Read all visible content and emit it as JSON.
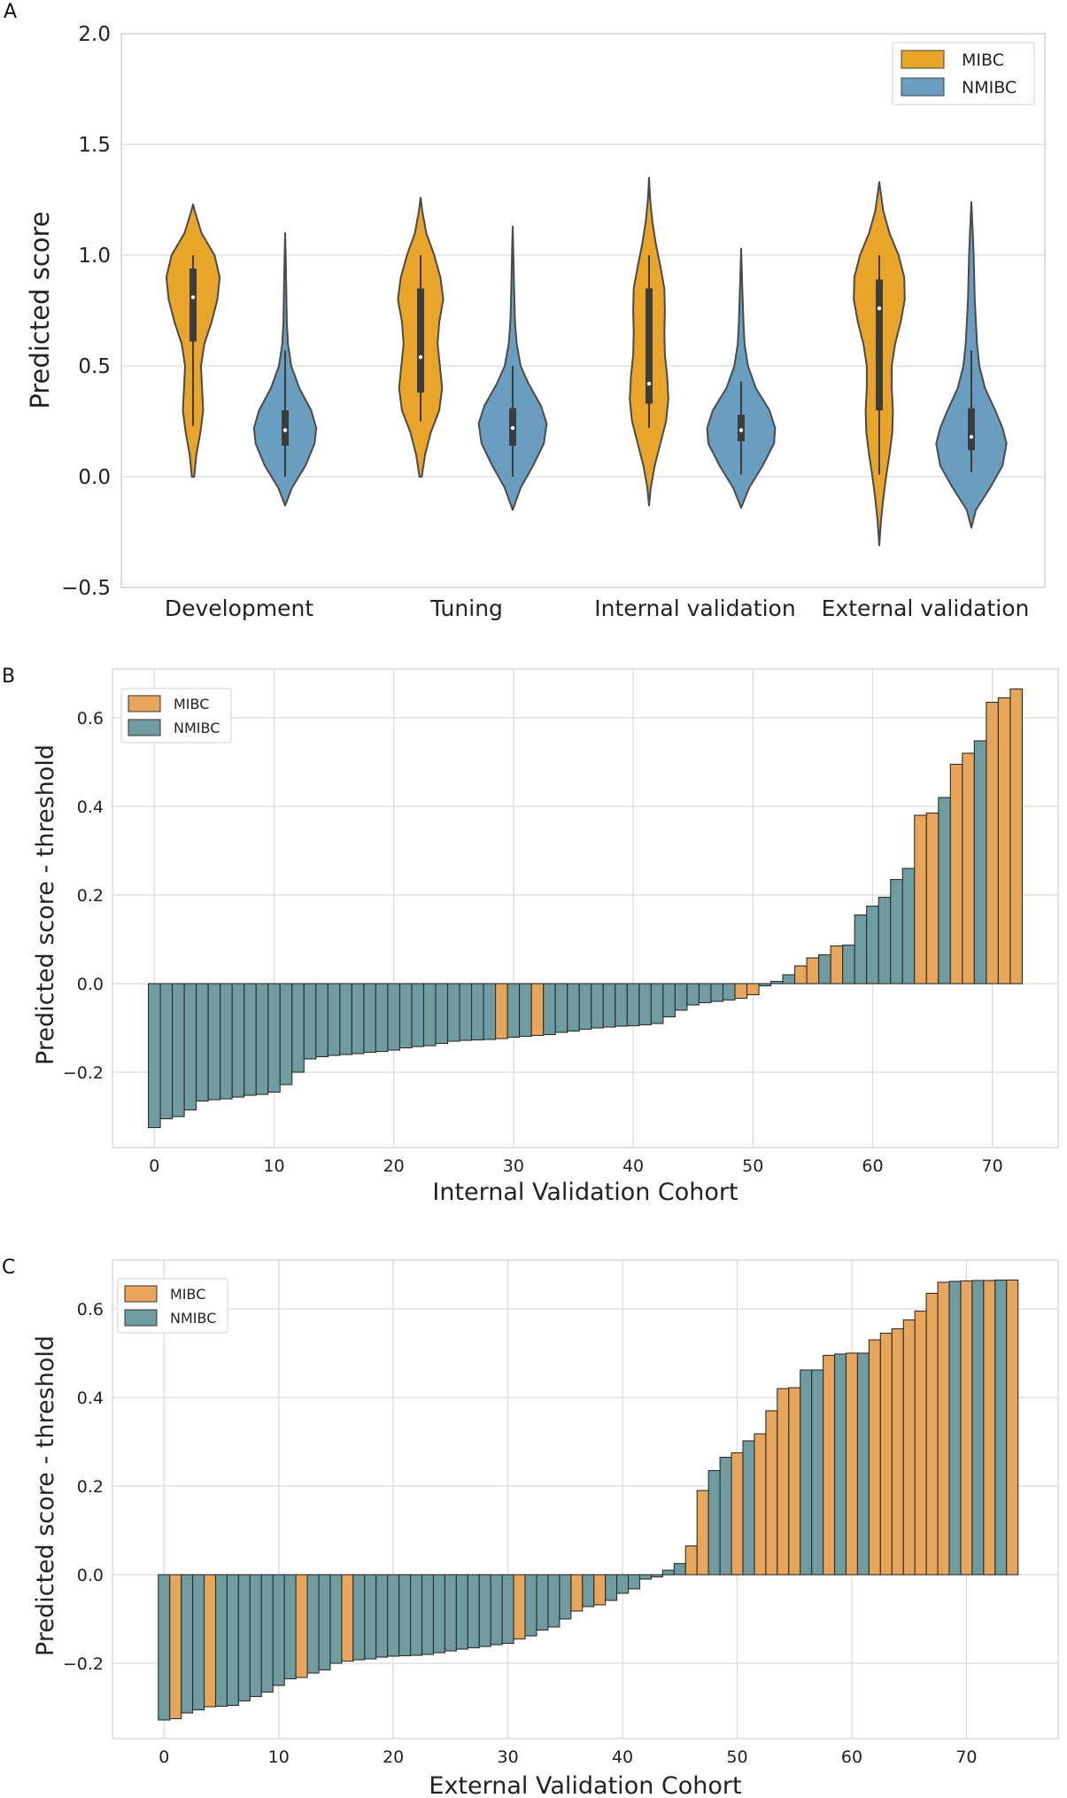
{
  "colors": {
    "mibc": "#E8A52A",
    "nmibc": "#6A9EC1",
    "mibc_bar": "#E7A65C",
    "nmibc_bar": "#6E9CA0",
    "grid": "#D9D9D9"
  },
  "chart_data": [
    {
      "panel": "A",
      "type": "violin",
      "title": "",
      "xlabel": "",
      "ylabel": "Predicted score",
      "ylim": [
        -0.5,
        2.0
      ],
      "yticks": [
        -0.5,
        0.0,
        0.5,
        1.0,
        1.5,
        2.0
      ],
      "ytick_labels": [
        "−0.5",
        "0.0",
        "0.5",
        "1.0",
        "1.5",
        "2.0"
      ],
      "categories": [
        "Development",
        "Tuning",
        "Internal validation",
        "External validation"
      ],
      "legend": [
        "MIBC",
        "NMIBC"
      ],
      "legend_position": "top-right",
      "series": [
        {
          "name": "MIBC",
          "groups": [
            {
              "min": 0.0,
              "max": 1.23,
              "q1": 0.61,
              "median": 0.81,
              "q3": 0.94,
              "whisker_low": 0.23,
              "whisker_high": 1.0,
              "density": [
                [
                  0.0,
                  0.02
                ],
                [
                  0.1,
                  0.06
                ],
                [
                  0.2,
                  0.13
                ],
                [
                  0.3,
                  0.18
                ],
                [
                  0.4,
                  0.16
                ],
                [
                  0.5,
                  0.14
                ],
                [
                  0.6,
                  0.2
                ],
                [
                  0.7,
                  0.33
                ],
                [
                  0.8,
                  0.43
                ],
                [
                  0.9,
                  0.47
                ],
                [
                  1.0,
                  0.38
                ],
                [
                  1.1,
                  0.15
                ],
                [
                  1.2,
                  0.03
                ],
                [
                  1.23,
                  0.0
                ]
              ]
            },
            {
              "min": 0.0,
              "max": 1.26,
              "q1": 0.38,
              "median": 0.54,
              "q3": 0.85,
              "whisker_low": 0.25,
              "whisker_high": 1.0,
              "density": [
                [
                  0.0,
                  0.02
                ],
                [
                  0.1,
                  0.08
                ],
                [
                  0.2,
                  0.18
                ],
                [
                  0.3,
                  0.33
                ],
                [
                  0.4,
                  0.38
                ],
                [
                  0.5,
                  0.34
                ],
                [
                  0.6,
                  0.3
                ],
                [
                  0.7,
                  0.33
                ],
                [
                  0.8,
                  0.4
                ],
                [
                  0.9,
                  0.35
                ],
                [
                  1.0,
                  0.24
                ],
                [
                  1.1,
                  0.1
                ],
                [
                  1.2,
                  0.03
                ],
                [
                  1.26,
                  0.0
                ]
              ]
            },
            {
              "min": -0.13,
              "max": 1.35,
              "q1": 0.33,
              "median": 0.42,
              "q3": 0.85,
              "whisker_low": 0.22,
              "whisker_high": 1.0,
              "density": [
                [
                  -0.13,
                  0.0
                ],
                [
                  -0.05,
                  0.03
                ],
                [
                  0.05,
                  0.1
                ],
                [
                  0.15,
                  0.2
                ],
                [
                  0.25,
                  0.3
                ],
                [
                  0.35,
                  0.34
                ],
                [
                  0.45,
                  0.32
                ],
                [
                  0.55,
                  0.28
                ],
                [
                  0.65,
                  0.27
                ],
                [
                  0.75,
                  0.28
                ],
                [
                  0.85,
                  0.27
                ],
                [
                  0.95,
                  0.2
                ],
                [
                  1.05,
                  0.12
                ],
                [
                  1.15,
                  0.06
                ],
                [
                  1.25,
                  0.02
                ],
                [
                  1.35,
                  0.0
                ]
              ]
            },
            {
              "min": -0.31,
              "max": 1.33,
              "q1": 0.3,
              "median": 0.76,
              "q3": 0.89,
              "whisker_low": 0.01,
              "whisker_high": 1.0,
              "density": [
                [
                  -0.31,
                  0.0
                ],
                [
                  -0.2,
                  0.03
                ],
                [
                  -0.1,
                  0.07
                ],
                [
                  0.0,
                  0.12
                ],
                [
                  0.1,
                  0.18
                ],
                [
                  0.2,
                  0.23
                ],
                [
                  0.3,
                  0.24
                ],
                [
                  0.4,
                  0.22
                ],
                [
                  0.5,
                  0.22
                ],
                [
                  0.6,
                  0.28
                ],
                [
                  0.7,
                  0.38
                ],
                [
                  0.8,
                  0.45
                ],
                [
                  0.9,
                  0.44
                ],
                [
                  1.0,
                  0.34
                ],
                [
                  1.1,
                  0.18
                ],
                [
                  1.2,
                  0.07
                ],
                [
                  1.33,
                  0.0
                ]
              ]
            }
          ]
        },
        {
          "name": "NMIBC",
          "groups": [
            {
              "min": -0.13,
              "max": 1.1,
              "q1": 0.14,
              "median": 0.21,
              "q3": 0.3,
              "whisker_low": 0.0,
              "whisker_high": 0.57,
              "density": [
                [
                  -0.13,
                  0.0
                ],
                [
                  -0.05,
                  0.12
                ],
                [
                  0.05,
                  0.36
                ],
                [
                  0.15,
                  0.52
                ],
                [
                  0.22,
                  0.55
                ],
                [
                  0.3,
                  0.46
                ],
                [
                  0.4,
                  0.25
                ],
                [
                  0.5,
                  0.11
                ],
                [
                  0.6,
                  0.05
                ],
                [
                  0.7,
                  0.03
                ],
                [
                  0.85,
                  0.02
                ],
                [
                  1.0,
                  0.01
                ],
                [
                  1.1,
                  0.0
                ]
              ]
            },
            {
              "min": -0.15,
              "max": 1.13,
              "q1": 0.14,
              "median": 0.22,
              "q3": 0.31,
              "whisker_low": 0.0,
              "whisker_high": 0.5,
              "density": [
                [
                  -0.15,
                  0.0
                ],
                [
                  -0.05,
                  0.14
                ],
                [
                  0.05,
                  0.36
                ],
                [
                  0.15,
                  0.55
                ],
                [
                  0.24,
                  0.6
                ],
                [
                  0.32,
                  0.5
                ],
                [
                  0.42,
                  0.28
                ],
                [
                  0.5,
                  0.14
                ],
                [
                  0.6,
                  0.07
                ],
                [
                  0.7,
                  0.04
                ],
                [
                  0.85,
                  0.025
                ],
                [
                  1.0,
                  0.012
                ],
                [
                  1.13,
                  0.0
                ]
              ]
            },
            {
              "min": -0.14,
              "max": 1.03,
              "q1": 0.16,
              "median": 0.21,
              "q3": 0.28,
              "whisker_low": 0.01,
              "whisker_high": 0.43,
              "density": [
                [
                  -0.14,
                  0.0
                ],
                [
                  -0.05,
                  0.14
                ],
                [
                  0.05,
                  0.38
                ],
                [
                  0.15,
                  0.58
                ],
                [
                  0.22,
                  0.6
                ],
                [
                  0.3,
                  0.5
                ],
                [
                  0.4,
                  0.26
                ],
                [
                  0.5,
                  0.12
                ],
                [
                  0.6,
                  0.06
                ],
                [
                  0.7,
                  0.04
                ],
                [
                  0.85,
                  0.02
                ],
                [
                  1.03,
                  0.0
                ]
              ]
            },
            {
              "min": -0.23,
              "max": 1.24,
              "q1": 0.12,
              "median": 0.18,
              "q3": 0.31,
              "whisker_low": 0.02,
              "whisker_high": 0.57,
              "density": [
                [
                  -0.23,
                  0.0
                ],
                [
                  -0.15,
                  0.08
                ],
                [
                  -0.05,
                  0.33
                ],
                [
                  0.05,
                  0.55
                ],
                [
                  0.15,
                  0.62
                ],
                [
                  0.22,
                  0.55
                ],
                [
                  0.3,
                  0.42
                ],
                [
                  0.4,
                  0.24
                ],
                [
                  0.5,
                  0.14
                ],
                [
                  0.6,
                  0.1
                ],
                [
                  0.7,
                  0.08
                ],
                [
                  0.8,
                  0.06
                ],
                [
                  0.9,
                  0.05
                ],
                [
                  1.0,
                  0.04
                ],
                [
                  1.1,
                  0.025
                ],
                [
                  1.24,
                  0.0
                ]
              ]
            }
          ]
        }
      ]
    },
    {
      "panel": "B",
      "type": "bar",
      "title": "",
      "xlabel": "Internal Validation Cohort",
      "ylabel": "Predicted score - threshold",
      "xlim": [
        -3.5,
        75.5
      ],
      "ylim": [
        -0.37,
        0.71
      ],
      "xticks": [
        0,
        10,
        20,
        30,
        40,
        50,
        60,
        70
      ],
      "yticks": [
        -0.2,
        0.0,
        0.2,
        0.4,
        0.6
      ],
      "ytick_labels": [
        "−0.2",
        "0.0",
        "0.2",
        "0.4",
        "0.6"
      ],
      "legend": [
        "MIBC",
        "NMIBC"
      ],
      "legend_position": "top-left",
      "values": [
        -0.325,
        -0.305,
        -0.3,
        -0.285,
        -0.265,
        -0.262,
        -0.26,
        -0.256,
        -0.252,
        -0.25,
        -0.245,
        -0.228,
        -0.2,
        -0.17,
        -0.165,
        -0.162,
        -0.16,
        -0.158,
        -0.155,
        -0.153,
        -0.15,
        -0.145,
        -0.142,
        -0.14,
        -0.135,
        -0.13,
        -0.128,
        -0.127,
        -0.126,
        -0.124,
        -0.121,
        -0.119,
        -0.117,
        -0.115,
        -0.11,
        -0.107,
        -0.103,
        -0.1,
        -0.098,
        -0.096,
        -0.095,
        -0.093,
        -0.09,
        -0.075,
        -0.06,
        -0.048,
        -0.043,
        -0.04,
        -0.037,
        -0.033,
        -0.025,
        -0.005,
        0.005,
        0.02,
        0.04,
        0.058,
        0.065,
        0.085,
        0.087,
        0.155,
        0.175,
        0.195,
        0.235,
        0.26,
        0.38,
        0.385,
        0.42,
        0.495,
        0.52,
        0.548,
        0.635,
        0.645,
        0.665
      ],
      "classes": [
        "N",
        "N",
        "N",
        "N",
        "N",
        "N",
        "N",
        "N",
        "N",
        "N",
        "N",
        "N",
        "N",
        "N",
        "N",
        "N",
        "N",
        "N",
        "N",
        "N",
        "N",
        "N",
        "N",
        "N",
        "N",
        "N",
        "N",
        "N",
        "N",
        "M",
        "N",
        "N",
        "M",
        "N",
        "N",
        "N",
        "N",
        "N",
        "N",
        "N",
        "N",
        "N",
        "N",
        "N",
        "N",
        "N",
        "N",
        "N",
        "N",
        "M",
        "M",
        "N",
        "N",
        "N",
        "M",
        "M",
        "N",
        "M",
        "N",
        "N",
        "N",
        "N",
        "N",
        "N",
        "M",
        "M",
        "N",
        "M",
        "M",
        "N",
        "M",
        "M",
        "M"
      ]
    },
    {
      "panel": "C",
      "type": "bar",
      "title": "",
      "xlabel": "External Validation Cohort",
      "ylabel": "Predicted score - threshold",
      "xlim": [
        -4.5,
        78.0
      ],
      "ylim": [
        -0.37,
        0.71
      ],
      "xticks": [
        0,
        10,
        20,
        30,
        40,
        50,
        60,
        70
      ],
      "yticks": [
        -0.2,
        0.0,
        0.2,
        0.4,
        0.6
      ],
      "ytick_labels": [
        "−0.2",
        "0.0",
        "0.2",
        "0.4",
        "0.6"
      ],
      "legend": [
        "MIBC",
        "NMIBC"
      ],
      "legend_position": "top-left",
      "values": [
        -0.328,
        -0.325,
        -0.312,
        -0.305,
        -0.298,
        -0.297,
        -0.295,
        -0.285,
        -0.275,
        -0.265,
        -0.25,
        -0.235,
        -0.232,
        -0.222,
        -0.215,
        -0.2,
        -0.195,
        -0.192,
        -0.19,
        -0.186,
        -0.184,
        -0.183,
        -0.182,
        -0.18,
        -0.176,
        -0.172,
        -0.168,
        -0.165,
        -0.162,
        -0.158,
        -0.155,
        -0.145,
        -0.138,
        -0.125,
        -0.118,
        -0.1,
        -0.082,
        -0.072,
        -0.068,
        -0.058,
        -0.042,
        -0.032,
        -0.01,
        -0.005,
        0.01,
        0.025,
        0.065,
        0.19,
        0.235,
        0.265,
        0.275,
        0.302,
        0.318,
        0.37,
        0.42,
        0.422,
        0.462,
        0.462,
        0.495,
        0.498,
        0.5,
        0.5,
        0.53,
        0.545,
        0.555,
        0.575,
        0.595,
        0.635,
        0.66,
        0.662,
        0.663,
        0.664,
        0.664,
        0.665,
        0.665
      ],
      "classes": [
        "N",
        "M",
        "N",
        "N",
        "M",
        "N",
        "N",
        "N",
        "N",
        "N",
        "N",
        "N",
        "M",
        "N",
        "N",
        "N",
        "M",
        "N",
        "N",
        "N",
        "N",
        "N",
        "N",
        "N",
        "N",
        "N",
        "N",
        "N",
        "N",
        "N",
        "N",
        "M",
        "N",
        "N",
        "N",
        "N",
        "M",
        "N",
        "M",
        "N",
        "N",
        "N",
        "N",
        "N",
        "N",
        "N",
        "M",
        "M",
        "N",
        "N",
        "M",
        "N",
        "M",
        "M",
        "M",
        "M",
        "N",
        "N",
        "M",
        "N",
        "M",
        "N",
        "M",
        "M",
        "M",
        "M",
        "M",
        "M",
        "M",
        "N",
        "M",
        "N",
        "M",
        "N",
        "M"
      ]
    }
  ]
}
